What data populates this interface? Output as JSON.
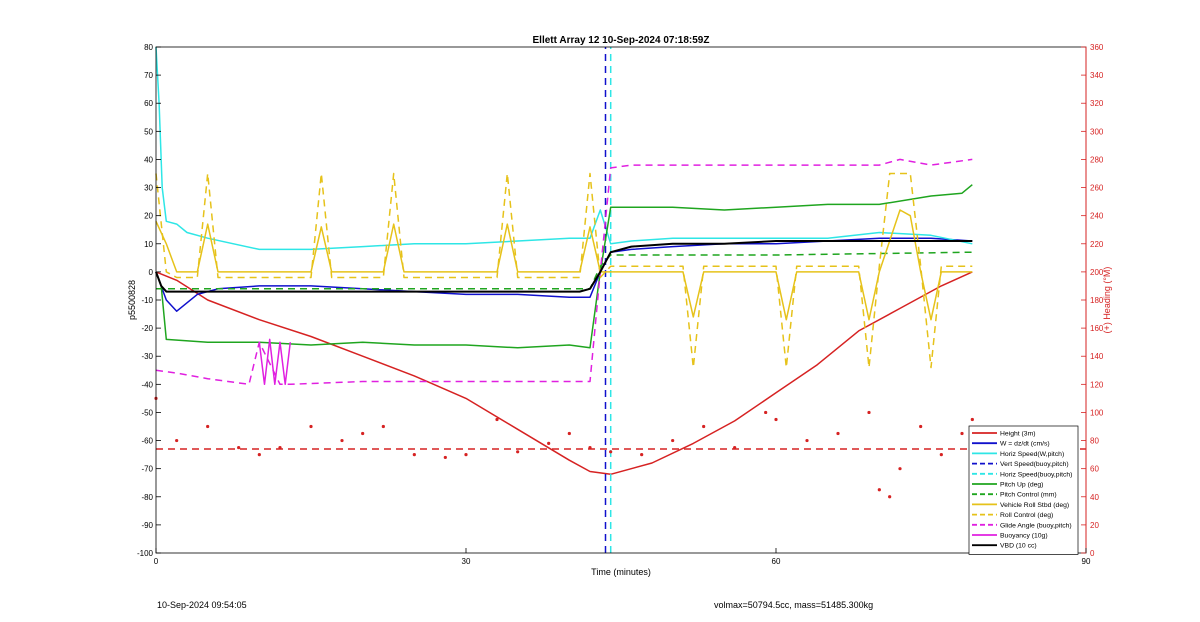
{
  "chart_data": {
    "type": "line",
    "title": "Ellett Array 12 10-Sep-2024 07:18:59Z",
    "xlabel": "Time (minutes)",
    "ylabel": "p5500828",
    "ylabel_right": "(+) Heading (°M)",
    "xlim": [
      0,
      90
    ],
    "ylim": [
      -100,
      80
    ],
    "ylim_right": [
      0,
      360
    ],
    "xticks": [
      "0",
      "30",
      "60",
      "90"
    ],
    "yticks": [
      "80",
      "70",
      "60",
      "50",
      "40",
      "30",
      "20",
      "10",
      "0",
      "-10",
      "-20",
      "-30",
      "-40",
      "-50",
      "-60",
      "-70",
      "-80",
      "-90",
      "-100"
    ],
    "yticks_right": [
      "360",
      "340",
      "320",
      "300",
      "280",
      "260",
      "240",
      "220",
      "200",
      "180",
      "160",
      "140",
      "120",
      "100",
      "80",
      "60",
      "40",
      "20",
      "0"
    ],
    "grid": false,
    "legend_position": "bottom-right",
    "colors": {
      "height": "#d62222",
      "w": "#1010cc",
      "horiz": "#2ee6e6",
      "pitch": "#1fa51f",
      "roll": "#e6c21a",
      "glide": "#e020e0",
      "vbd": "#000000",
      "axis_right": "#d62222"
    },
    "vertical_lines": [
      {
        "x": 43.5,
        "style": "dashed",
        "color": "#1010cc",
        "description": "Vert Speed(buoy,pitch)"
      },
      {
        "x": 44.0,
        "style": "dashed",
        "color": "#2ee6e6",
        "description": "Horiz Speed(buoy,pitch)"
      }
    ],
    "horizontal_lines": [
      {
        "y": -63,
        "style": "dashed",
        "color": "#d62222",
        "axis": "left"
      }
    ],
    "series": [
      {
        "name": "Height (3m)",
        "style": "solid",
        "color": "#d62222",
        "x": [
          0,
          2,
          5,
          10,
          15,
          20,
          25,
          30,
          35,
          40,
          42,
          44,
          48,
          52,
          56,
          60,
          64,
          68,
          72,
          76,
          79
        ],
        "y": [
          0,
          -3,
          -10,
          -17,
          -23,
          -30,
          -37,
          -45,
          -56,
          -67,
          -71,
          -72,
          -68,
          -61,
          -53,
          -43,
          -33,
          -21,
          -13,
          -5,
          0
        ]
      },
      {
        "name": "W = dz/dt (cm/s)",
        "style": "solid",
        "color": "#1010cc",
        "x": [
          0,
          1,
          2,
          4,
          6,
          10,
          15,
          20,
          25,
          30,
          35,
          40,
          42,
          43,
          44,
          46,
          50,
          55,
          60,
          65,
          70,
          75,
          79
        ],
        "y": [
          0,
          -10,
          -14,
          -8,
          -6,
          -5,
          -5,
          -6,
          -7,
          -8,
          -8,
          -9,
          -9,
          0,
          7,
          8,
          9,
          10,
          10,
          11,
          12,
          12,
          11
        ]
      },
      {
        "name": "Horiz Speed(W,pitch)",
        "style": "solid",
        "color": "#2ee6e6",
        "x": [
          0,
          0.3,
          0.6,
          1,
          2,
          3,
          5,
          10,
          15,
          20,
          25,
          30,
          35,
          40,
          42,
          43,
          44,
          46,
          50,
          55,
          60,
          65,
          70,
          75,
          79
        ],
        "y": [
          80,
          60,
          30,
          18,
          17,
          14,
          12,
          8,
          8,
          9,
          10,
          10,
          11,
          12,
          12,
          22,
          10,
          11,
          12,
          12,
          12,
          12,
          14,
          13,
          10
        ]
      },
      {
        "name": "Vert Speed(buoy,pitch)",
        "style": "dashed",
        "color": "#1010cc",
        "x": [
          43.5,
          43.5
        ],
        "y": [
          -100,
          80
        ]
      },
      {
        "name": "Horiz Speed(buoy,pitch)",
        "style": "dashed",
        "color": "#2ee6e6",
        "x": [
          44,
          44
        ],
        "y": [
          -100,
          80
        ]
      },
      {
        "name": "Pitch Up (deg)",
        "style": "solid",
        "color": "#1fa51f",
        "x": [
          0,
          0.5,
          1,
          5,
          10,
          15,
          20,
          25,
          30,
          35,
          40,
          42,
          43,
          44,
          46,
          50,
          55,
          60,
          65,
          70,
          75,
          78,
          79
        ],
        "y": [
          0,
          -5,
          -24,
          -25,
          -25,
          -26,
          -25,
          -26,
          -26,
          -27,
          -26,
          -27,
          0,
          23,
          23,
          23,
          22,
          23,
          24,
          24,
          27,
          28,
          31
        ]
      },
      {
        "name": "Pitch Control (mm)",
        "style": "dashed",
        "color": "#1fa51f",
        "x": [
          0,
          20,
          42,
          43,
          44,
          60,
          79
        ],
        "y": [
          -6,
          -6,
          -6,
          2,
          6,
          6,
          7
        ]
      },
      {
        "name": "Vehicle Roll Stbd (deg)",
        "style": "solid",
        "color": "#e6c21a",
        "x": [
          0,
          1,
          2,
          4,
          5,
          6,
          8,
          15,
          16,
          17,
          22,
          23,
          24,
          33,
          34,
          35,
          41,
          42,
          43,
          44,
          51,
          52,
          53,
          60,
          61,
          62,
          68,
          69,
          70,
          72,
          73,
          74,
          75,
          76,
          79
        ],
        "y": [
          18,
          10,
          0,
          0,
          17,
          0,
          0,
          0,
          16,
          0,
          0,
          17,
          0,
          0,
          17,
          0,
          0,
          16,
          0,
          0,
          0,
          -16,
          0,
          0,
          -17,
          0,
          0,
          -17,
          0,
          22,
          20,
          0,
          -17,
          0,
          0
        ]
      },
      {
        "name": "Roll Control (deg)",
        "style": "dashed",
        "color": "#e6c21a",
        "x": [
          0,
          1,
          2,
          4,
          5,
          6,
          8,
          15,
          16,
          17,
          22,
          23,
          24,
          33,
          34,
          35,
          41,
          42,
          43,
          44,
          51,
          52,
          53,
          60,
          61,
          62,
          68,
          69,
          70,
          71,
          72,
          73,
          74,
          75,
          76,
          79
        ],
        "y": [
          35,
          0,
          -2,
          -2,
          35,
          -2,
          -2,
          -2,
          35,
          -2,
          -2,
          35,
          -2,
          -2,
          35,
          -2,
          -2,
          35,
          -2,
          2,
          2,
          -34,
          2,
          2,
          -34,
          2,
          2,
          -34,
          2,
          35,
          35,
          35,
          2,
          -34,
          2,
          2
        ]
      },
      {
        "name": "Glide Angle (buoy,pitch)",
        "style": "dashed",
        "color": "#e020e0",
        "x": [
          0,
          2,
          5,
          9,
          10,
          12,
          13,
          20,
          30,
          40,
          42,
          43,
          44,
          46,
          50,
          60,
          70,
          72,
          75,
          79
        ],
        "y": [
          -35,
          -36,
          -38,
          -40,
          -25,
          -40,
          -40,
          -39,
          -39,
          -39,
          -39,
          0,
          37,
          38,
          38,
          38,
          38,
          40,
          38,
          40
        ]
      },
      {
        "name": "Buoyancy (10g)",
        "style": "solid",
        "color": "#e020e0",
        "x": [
          10,
          10.5,
          11,
          11.5,
          12,
          12.5,
          13
        ],
        "y": [
          -25,
          -40,
          -24,
          -40,
          -25,
          -40,
          -25
        ]
      },
      {
        "name": "VBD (10 cc)",
        "style": "solid",
        "color": "#000000",
        "x": [
          0,
          0.5,
          1,
          10,
          20,
          30,
          41,
          42,
          43,
          44,
          46,
          50,
          55,
          60,
          65,
          70,
          75,
          79
        ],
        "y": [
          0,
          -5,
          -7,
          -7,
          -7,
          -7,
          -7,
          -6,
          0,
          7,
          9,
          10,
          10,
          11,
          11,
          11,
          11,
          11
        ]
      },
      {
        "name": "Heading",
        "style": "dots",
        "color": "#d62222",
        "axis": "right",
        "x": [
          0,
          2,
          5,
          8,
          10,
          12,
          15,
          18,
          20,
          22,
          25,
          28,
          30,
          33,
          35,
          38,
          40,
          42,
          44,
          47,
          50,
          53,
          56,
          59,
          60,
          63,
          66,
          69,
          70,
          71,
          72,
          74,
          76,
          78,
          79
        ],
        "y": [
          110,
          80,
          90,
          75,
          70,
          75,
          90,
          80,
          85,
          90,
          70,
          68,
          70,
          95,
          72,
          78,
          85,
          75,
          72,
          70,
          80,
          90,
          75,
          100,
          95,
          80,
          85,
          100,
          45,
          40,
          60,
          90,
          70,
          85,
          95
        ]
      }
    ]
  },
  "legend_items": [
    {
      "label": "Height (3m)",
      "color": "#d62222",
      "style": "solid"
    },
    {
      "label": "W = dz/dt (cm/s)",
      "color": "#1010cc",
      "style": "solid"
    },
    {
      "label": "Horiz Speed(W,pitch)",
      "color": "#2ee6e6",
      "style": "solid"
    },
    {
      "label": "Vert Speed(buoy,pitch)",
      "color": "#1010cc",
      "style": "dashed"
    },
    {
      "label": "Horiz Speed(buoy,pitch)",
      "color": "#2ee6e6",
      "style": "dashed"
    },
    {
      "label": "Pitch Up (deg)",
      "color": "#1fa51f",
      "style": "solid"
    },
    {
      "label": "Pitch Control (mm)",
      "color": "#1fa51f",
      "style": "dashed"
    },
    {
      "label": "Vehicle Roll Stbd (deg)",
      "color": "#e6c21a",
      "style": "solid"
    },
    {
      "label": "Roll Control (deg)",
      "color": "#e6c21a",
      "style": "dashed"
    },
    {
      "label": "Glide Angle (buoy,pitch)",
      "color": "#e020e0",
      "style": "dashed"
    },
    {
      "label": "Buoyancy (10g)",
      "color": "#e020e0",
      "style": "solid"
    },
    {
      "label": "VBD (10 cc)",
      "color": "#000000",
      "style": "solid"
    }
  ],
  "footer": {
    "left": "10-Sep-2024 09:54:05",
    "right": "volmax=50794.5cc, mass=51485.300kg"
  }
}
